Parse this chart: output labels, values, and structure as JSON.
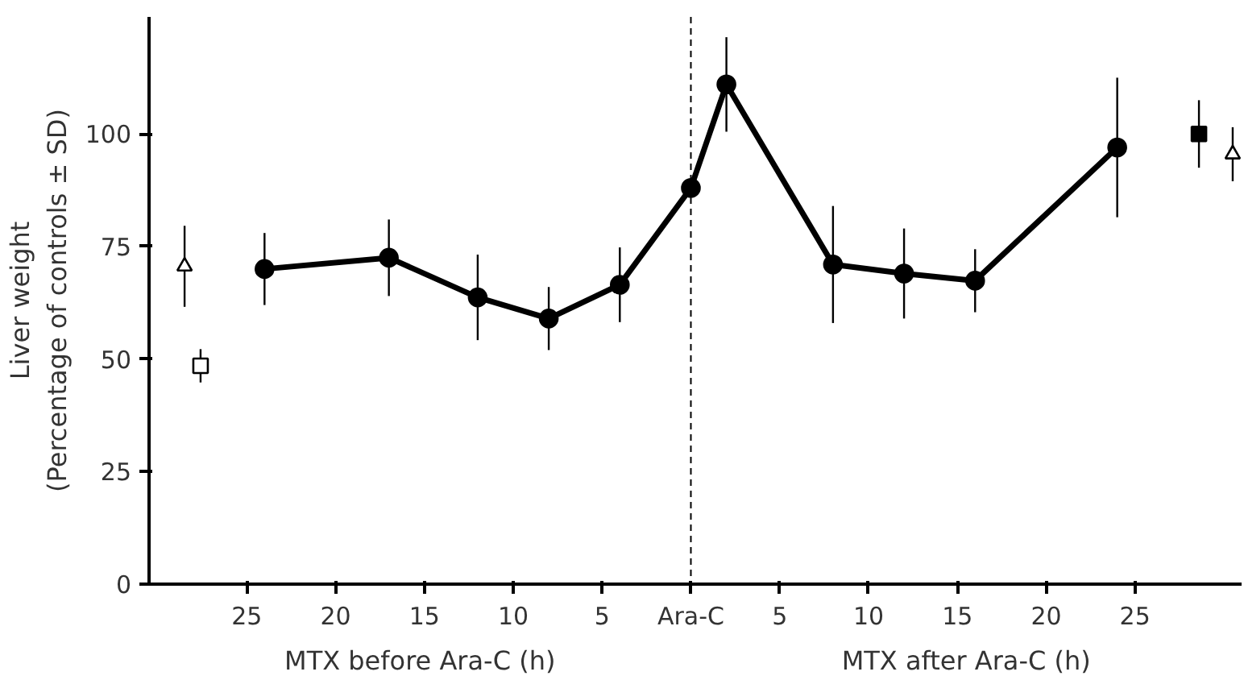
{
  "chart_data": {
    "type": "line",
    "ylabel": "Liver weight\n(Percentage of controls ± SD)",
    "annotations": [
      "MTX before Ara-C (h)",
      "MTX after Ara-C (h)"
    ],
    "xlim": [
      -30.5,
      31
    ],
    "ylim": [
      0,
      126
    ],
    "xticks": [
      {
        "value": -25,
        "label": "25"
      },
      {
        "value": -20,
        "label": "20"
      },
      {
        "value": -15,
        "label": "15"
      },
      {
        "value": -10,
        "label": "10"
      },
      {
        "value": -5,
        "label": "5"
      },
      {
        "value": 0,
        "label": "Ara-C"
      },
      5,
      10,
      15,
      20,
      25
    ],
    "yticks": [
      0,
      25,
      50,
      75,
      100
    ],
    "grid": false,
    "ref_lines": [
      {
        "axis": "x",
        "value": 0,
        "line_style": "dashed",
        "color": "#000000"
      }
    ],
    "series": [
      {
        "marker": "circle",
        "color": "#000000",
        "x": [
          -24,
          -17,
          -12,
          -8,
          -4,
          0,
          2,
          8,
          12,
          16,
          24
        ],
        "values": [
          70,
          72.5,
          63.7,
          59,
          66.5,
          88,
          111,
          71,
          69,
          67.4,
          97
        ],
        "errors": [
          8,
          8.5,
          9.5,
          7,
          8.3,
          null,
          10.5,
          13,
          10,
          7,
          15.5
        ]
      },
      {
        "type": "scatter",
        "marker": "triangle",
        "color": "#ffffff",
        "x": [
          -28.5
        ],
        "values": [
          70.6
        ],
        "errors": [
          9
        ]
      },
      {
        "type": "scatter",
        "marker": "square",
        "color": "#ffffff",
        "x": [
          -27.6
        ],
        "values": [
          48.5
        ],
        "errors": [
          3.7
        ]
      },
      {
        "type": "scatter",
        "marker": "square",
        "color": "#000000",
        "x": [
          28.6
        ],
        "values": [
          100
        ],
        "errors": [
          7.5
        ]
      },
      {
        "type": "scatter",
        "marker": "triangle",
        "color": "#ffffff",
        "x": [
          30.5
        ],
        "values": [
          95.5
        ],
        "errors": [
          6
        ]
      }
    ]
  }
}
